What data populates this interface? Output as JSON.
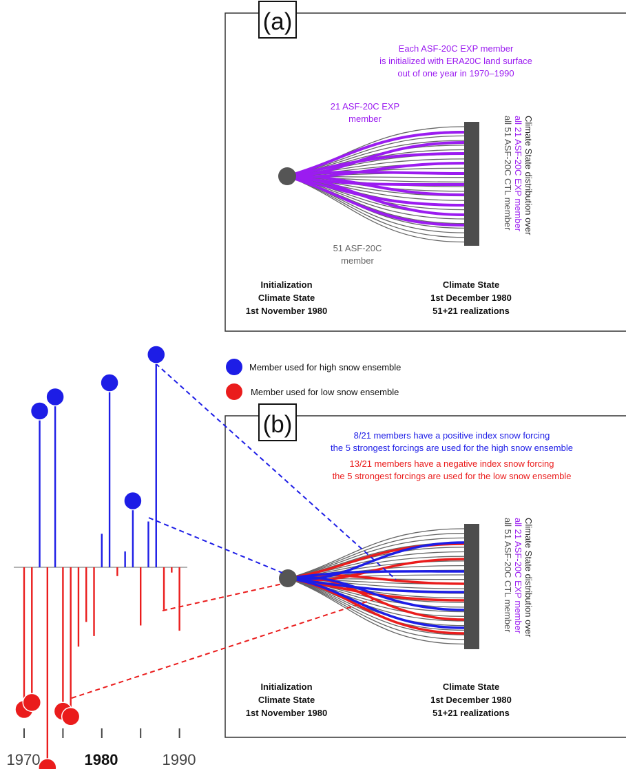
{
  "colors": {
    "purple": "#9b1cf0",
    "blue": "#1d1de6",
    "red": "#ea1c1c",
    "gray": "#5a5a5a",
    "dark": "#222222"
  },
  "panel_a": {
    "label": "(a)",
    "note_lines": [
      "Each ASF-20C EXP member",
      "is initialized with ERA20C land surface",
      "out of one year in 1970–1990"
    ],
    "exp_member_lines": [
      "21 ASF-20C EXP",
      "member"
    ],
    "ctl_member_lines": [
      "51 ASF-20C",
      "member"
    ],
    "side_lines": [
      "Climate State distribution over",
      "all 21 ASF-20C EXP member",
      "all 51 ASF-20C CTL member"
    ],
    "init_lines": [
      "Initialization",
      "Climate State",
      "1st November 1980"
    ],
    "state_lines": [
      "Climate State",
      "1st December 1980",
      "51+21 realizations"
    ]
  },
  "legend": {
    "high": "Member used for high snow ensemble",
    "low": "Member used for low snow ensemble"
  },
  "panel_b": {
    "label": "(b)",
    "note_lines": [
      "8/21 members have a positive index snow forcing",
      "the 5 strongest forcings are used for the high snow ensemble",
      "13/21 members have a negative index snow forcing",
      "the 5 strongest forcings are used for the low snow ensemble"
    ],
    "side_lines": [
      "Climate State distribution over",
      "all 21 ASF-20C EXP member",
      "all 51 ASF-20C CTL member"
    ],
    "init_lines": [
      "Initialization",
      "Climate State",
      "1st November 1980"
    ],
    "state_lines": [
      "Climate State",
      "1st December 1980",
      "51+21 realizations"
    ]
  },
  "chart_data": {
    "type": "bar",
    "x": [
      1970,
      1971,
      1972,
      1973,
      1974,
      1975,
      1976,
      1977,
      1978,
      1979,
      1980,
      1981,
      1982,
      1983,
      1984,
      1985,
      1986,
      1987,
      1988,
      1989,
      1990
    ],
    "values": [
      -7.6,
      -7.2,
      8.4,
      -10.9,
      9.2,
      -7.7,
      -8.0,
      -4.5,
      -3.1,
      -3.9,
      1.9,
      10.0,
      -0.5,
      0.9,
      3.3,
      -3.3,
      2.6,
      11.6,
      -2.4,
      -0.3,
      -3.6
    ],
    "highlighted_high": [
      1972,
      1974,
      1981,
      1984,
      1987
    ],
    "highlighted_low": [
      1970,
      1971,
      1973,
      1975,
      1976
    ],
    "tick_labels": [
      "1970",
      "1980",
      "1990"
    ],
    "ticks": [
      1970,
      1975,
      1980,
      1985,
      1990
    ],
    "bold_tick": "1980"
  }
}
